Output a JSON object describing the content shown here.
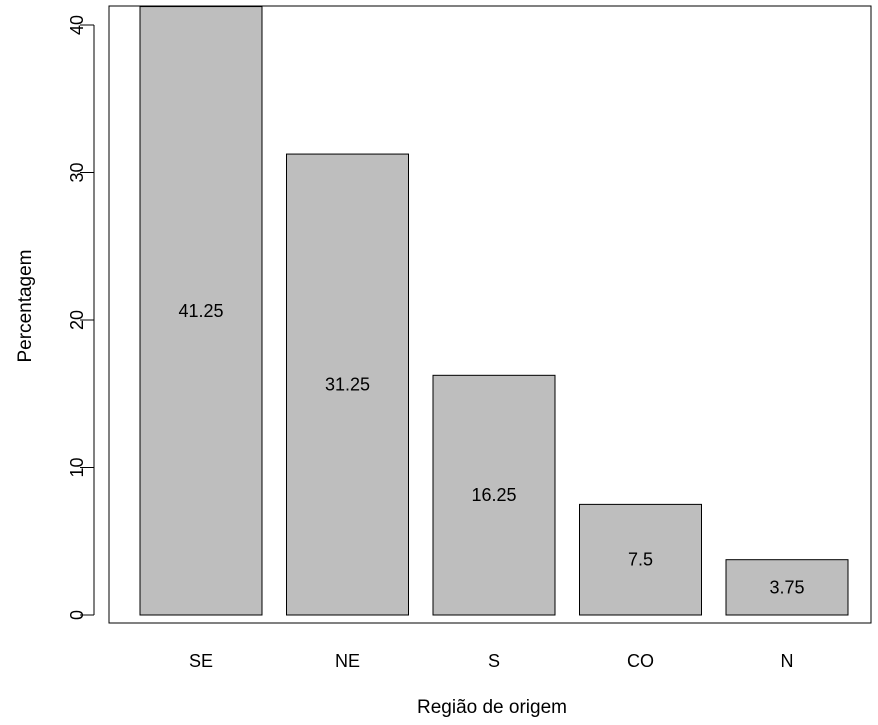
{
  "chart_data": {
    "type": "bar",
    "title": "",
    "xlabel": "Região de origem",
    "ylabel": "Percentagem",
    "categories": [
      "SE",
      "NE",
      "S",
      "CO",
      "N"
    ],
    "values": [
      41.25,
      31.25,
      16.25,
      7.5,
      3.75
    ],
    "data_labels": [
      "41.25",
      "31.25",
      "16.25",
      "7.5",
      "3.75"
    ],
    "ylim": [
      0,
      40
    ],
    "y_ticks": [
      0,
      10,
      20,
      30,
      40
    ],
    "y_tick_labels": [
      "0",
      "10",
      "20",
      "30",
      "40"
    ],
    "grid": false,
    "legend": "none",
    "bar_color": "#bebebe",
    "bar_border_color": "#000000"
  }
}
